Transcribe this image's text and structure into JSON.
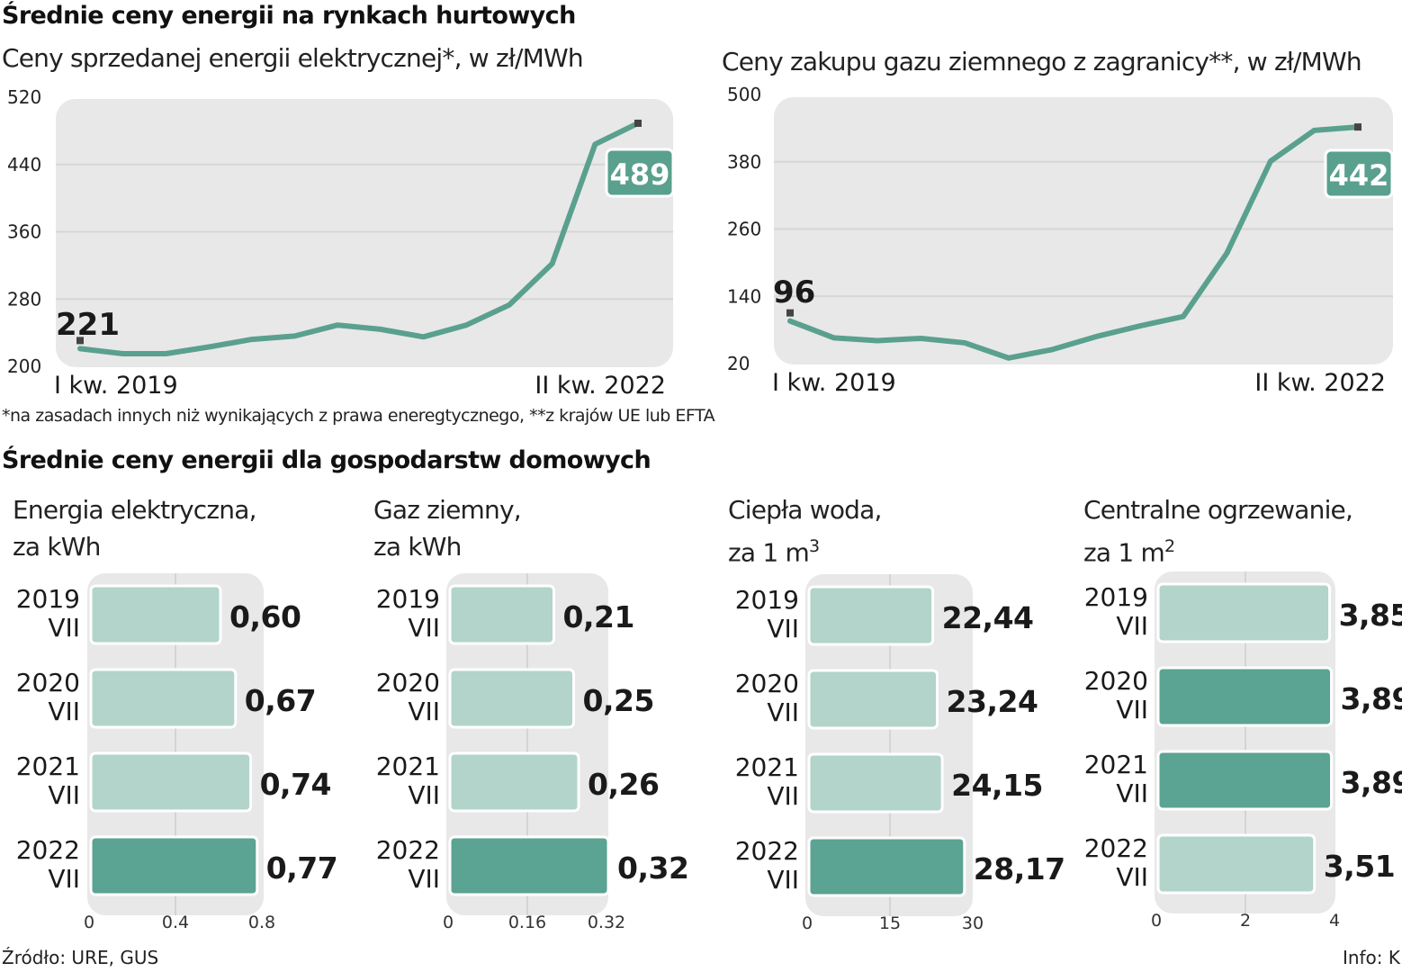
{
  "header": {
    "wholesale_title": "Średnie ceny energii na rynkach hurtowych",
    "footnote": "*na zasadach innych niż wynikających z prawa eneregtycznego, **z krajów UE lub EFTA",
    "household_title": "Średnie ceny energii dla gospodarstw domowych",
    "source": "Źródło: URE, GUS",
    "credit": "Info: K"
  },
  "colors": {
    "line": "#5aa08e",
    "bar_light": "#b2d4ca",
    "bar_dark": "#5ba392",
    "panel_bg": "#e8e8e8",
    "label_box": "#5aa08e"
  },
  "chart_data": [
    {
      "type": "line",
      "title": "Ceny sprzedanej energii elektrycznej*, w zł/MWh",
      "ylim": [
        200,
        520
      ],
      "yticks": [
        "200",
        "280",
        "360",
        "440",
        "520"
      ],
      "x_start_label": "I kw. 2019",
      "x_end_label": "II kw. 2022",
      "values": [
        221,
        215,
        215,
        223,
        232,
        236,
        249,
        244,
        235,
        249,
        273,
        322,
        464,
        489
      ],
      "start_label": "221",
      "end_label": "489",
      "grid": true
    },
    {
      "type": "line",
      "title": "Ceny zakupu gazu ziemnego z zagranicy**, w zł/MWh",
      "ylim": [
        20,
        500
      ],
      "yticks": [
        "20",
        "140",
        "260",
        "380",
        "500"
      ],
      "x_start_label": "I kw. 2019",
      "x_end_label": "II kw. 2022",
      "values": [
        96,
        66,
        61,
        65,
        57,
        30,
        45,
        68,
        87,
        104,
        217,
        381,
        436,
        442
      ],
      "start_label": "96",
      "end_label": "442",
      "grid": true
    },
    {
      "type": "bar",
      "title_line1": "Energia elektryczna,",
      "title_line2": "za kWh",
      "superscript": "",
      "categories": [
        [
          "2019",
          "VII"
        ],
        [
          "2020",
          "VII"
        ],
        [
          "2021",
          "VII"
        ],
        [
          "2022",
          "VII"
        ]
      ],
      "values": [
        0.6,
        0.67,
        0.74,
        0.77
      ],
      "labels": [
        "0,60",
        "0,67",
        "0,74",
        "0,77"
      ],
      "highlight": [
        false,
        false,
        false,
        true
      ],
      "xlim": [
        0,
        0.8
      ],
      "xticks": [
        "0",
        "0.4",
        "0.8"
      ]
    },
    {
      "type": "bar",
      "title_line1": "Gaz ziemny,",
      "title_line2": "za kWh",
      "superscript": "",
      "categories": [
        [
          "2019",
          "VII"
        ],
        [
          "2020",
          "VII"
        ],
        [
          "2021",
          "VII"
        ],
        [
          "2022",
          "VII"
        ]
      ],
      "values": [
        0.21,
        0.25,
        0.26,
        0.32
      ],
      "labels": [
        "0,21",
        "0,25",
        "0,26",
        "0,32"
      ],
      "highlight": [
        false,
        false,
        false,
        true
      ],
      "xlim": [
        0,
        0.32
      ],
      "xticks": [
        "0",
        "0.16",
        "0.32"
      ]
    },
    {
      "type": "bar",
      "title_line1": "Ciepła woda,",
      "title_line2": "za 1 m",
      "superscript": "3",
      "categories": [
        [
          "2019",
          "VII"
        ],
        [
          "2020",
          "VII"
        ],
        [
          "2021",
          "VII"
        ],
        [
          "2022",
          "VII"
        ]
      ],
      "values": [
        22.44,
        23.24,
        24.15,
        28.17
      ],
      "labels": [
        "22,44",
        "23,24",
        "24,15",
        "28,17"
      ],
      "highlight": [
        false,
        false,
        false,
        true
      ],
      "xlim": [
        0,
        30
      ],
      "xticks": [
        "0",
        "15",
        "30"
      ]
    },
    {
      "type": "bar",
      "title_line1": "Centralne ogrzewanie,",
      "title_line2": "za 1 m",
      "superscript": "2",
      "categories": [
        [
          "2019",
          "VII"
        ],
        [
          "2020",
          "VII"
        ],
        [
          "2021",
          "VII"
        ],
        [
          "2022",
          "VII"
        ]
      ],
      "values": [
        3.85,
        3.89,
        3.89,
        3.51
      ],
      "labels": [
        "3,85",
        "3,89",
        "3,89",
        "3,51"
      ],
      "highlight": [
        false,
        true,
        true,
        false
      ],
      "xlim": [
        0,
        4
      ],
      "xticks": [
        "0",
        "2",
        "4"
      ]
    }
  ]
}
